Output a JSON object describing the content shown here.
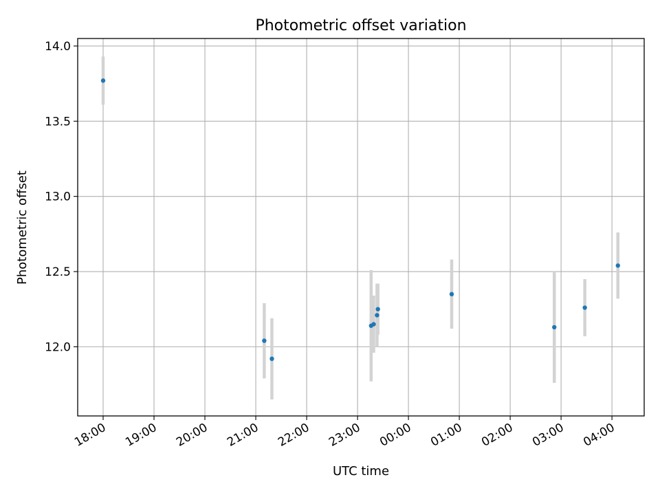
{
  "chart_data": {
    "type": "scatter",
    "title": "Photometric offset variation",
    "xlabel": "UTC time",
    "ylabel": "Photometric offset",
    "x_ticks": [
      "18:00",
      "19:00",
      "20:00",
      "21:00",
      "22:00",
      "23:00",
      "00:00",
      "01:00",
      "02:00",
      "03:00",
      "04:00"
    ],
    "y_ticks": [
      "12.0",
      "12.5",
      "13.0",
      "13.5",
      "14.0"
    ],
    "ylim": [
      11.54,
      14.05
    ],
    "xlim": [
      "17:30",
      "04:38"
    ],
    "grid": true,
    "colors": {
      "point": "#1f77b4",
      "error_bar": "#d3d3d3",
      "grid": "#b0b0b0"
    },
    "series": [
      {
        "points": [
          {
            "x": "18:00",
            "y": 13.77,
            "err": 0.16
          },
          {
            "x": "21:10",
            "y": 12.04,
            "err": 0.25
          },
          {
            "x": "21:19",
            "y": 11.92,
            "err": 0.27
          },
          {
            "x": "23:16",
            "y": 12.14,
            "err": 0.37
          },
          {
            "x": "23:19",
            "y": 12.15,
            "err": 0.19
          },
          {
            "x": "23:23",
            "y": 12.21,
            "err": 0.21
          },
          {
            "x": "23:24",
            "y": 12.25,
            "err": 0.17
          },
          {
            "x": "00:51",
            "y": 12.35,
            "err": 0.23
          },
          {
            "x": "02:52",
            "y": 12.13,
            "err": 0.37
          },
          {
            "x": "03:28",
            "y": 12.26,
            "err": 0.19
          },
          {
            "x": "04:07",
            "y": 12.54,
            "err": 0.22
          }
        ]
      }
    ]
  }
}
